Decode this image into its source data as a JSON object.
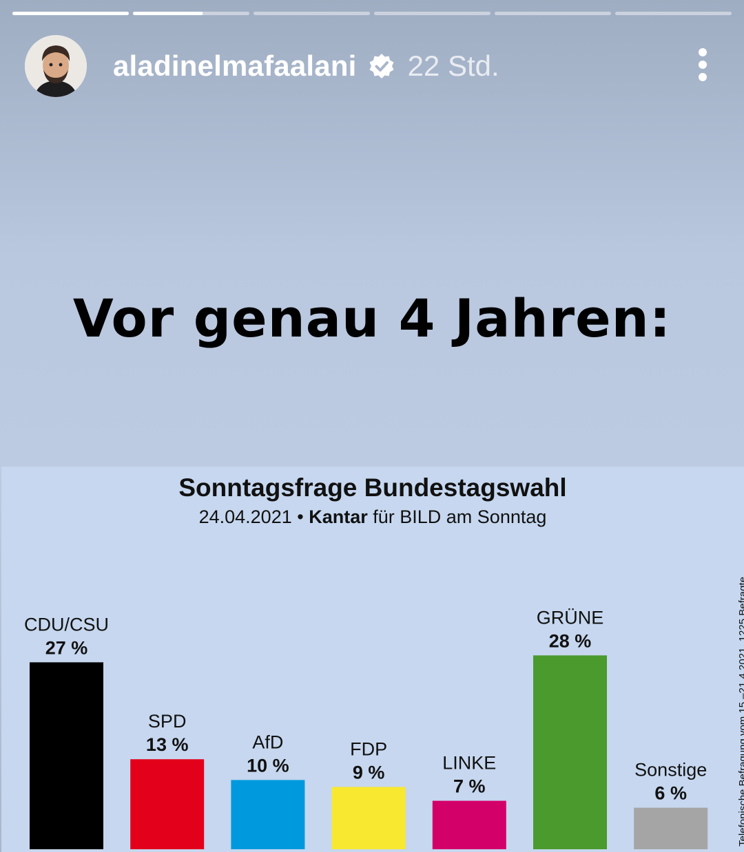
{
  "story": {
    "progress": [
      1,
      0.6,
      0,
      0,
      0,
      0
    ],
    "username": "aladinelmafaalani",
    "time": "22 Std.",
    "headline": "Vor genau 4 Jahren:",
    "icons": {
      "verified": "verified-badge-icon",
      "more": "more-options-icon"
    }
  },
  "chart_data": {
    "type": "bar",
    "title": "Sonntagsfrage Bundestagswahl",
    "subtitle_date": "24.04.2021 •",
    "subtitle_source": "Kantar",
    "subtitle_rest": "für BILD am Sonntag",
    "side_note": "Telefonische Befragung vom 15.–21.4.2021, 1225 Befragte",
    "categories": [
      "CDU/CSU",
      "SPD",
      "AfD",
      "FDP",
      "LINKE",
      "GRÜNE",
      "Sonstige"
    ],
    "values": [
      27,
      13,
      10,
      9,
      7,
      28,
      6
    ],
    "value_labels": [
      "27 %",
      "13 %",
      "10 %",
      "9 %",
      "7 %",
      "28 %",
      "6 %"
    ],
    "colors": [
      "#000000",
      "#e3001b",
      "#0099dd",
      "#f8e830",
      "#d4006a",
      "#4a9a2d",
      "#a5a5a5"
    ],
    "ylim": [
      0,
      30
    ]
  }
}
